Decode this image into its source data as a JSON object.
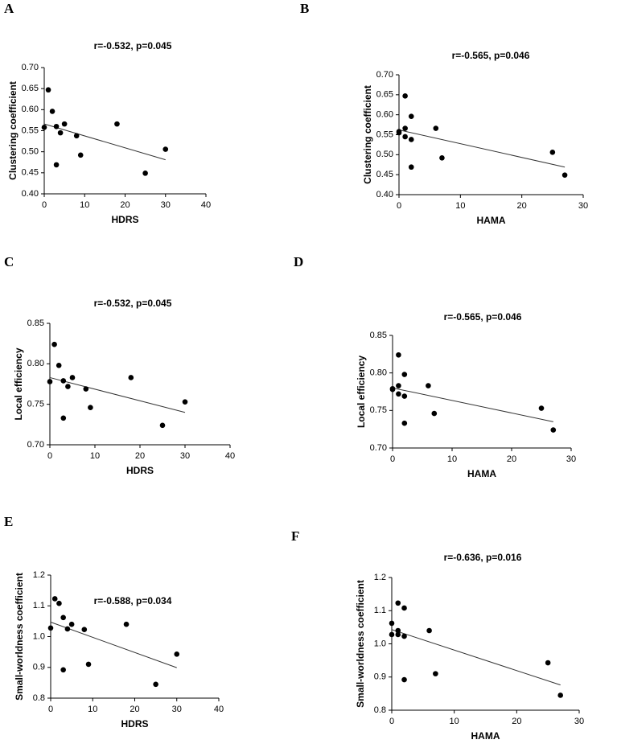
{
  "chart_data": [
    {
      "type": "scatter",
      "panel": "A",
      "title": "r=-0.532, p=0.045",
      "x_label": "HDRS",
      "y_label": "Clustering coefficient",
      "color": "#000000",
      "x": [
        0,
        1,
        2,
        3,
        4,
        5,
        8,
        9,
        3,
        18,
        25,
        30
      ],
      "y": [
        0.558,
        0.647,
        0.596,
        0.56,
        0.545,
        0.566,
        0.538,
        0.492,
        0.469,
        0.566,
        0.449,
        0.506
      ],
      "fit": {
        "x": [
          0,
          30
        ],
        "y": [
          0.566,
          0.481
        ]
      },
      "xlim": [
        0,
        40
      ],
      "xticks": [
        0,
        10,
        20,
        30,
        40
      ],
      "ylim": [
        0.4,
        0.7
      ],
      "yticks": [
        {
          "value": 0.4,
          "label": "0.40"
        },
        0.45,
        {
          "value": 0.5,
          "label": "0.50"
        },
        0.55,
        {
          "value": 0.6,
          "label": "0.60"
        },
        0.65,
        {
          "value": 0.7,
          "label": "0.70"
        }
      ]
    },
    {
      "type": "scatter",
      "panel": "B",
      "title": "r=-0.565, p=0.046",
      "x_label": "HAMA",
      "y_label": "Clustering coefficient",
      "color": "#000000",
      "x": [
        0,
        0,
        1,
        1,
        1,
        2,
        2,
        2,
        6,
        7,
        25,
        27
      ],
      "y": [
        0.558,
        0.555,
        0.647,
        0.566,
        0.545,
        0.596,
        0.538,
        0.469,
        0.566,
        0.492,
        0.506,
        0.449
      ],
      "fit": {
        "x": [
          0,
          27
        ],
        "y": [
          0.562,
          0.469
        ]
      },
      "xlim": [
        0,
        30
      ],
      "xticks": [
        0,
        10,
        20,
        30
      ],
      "ylim": [
        0.4,
        0.7
      ],
      "yticks": [
        {
          "value": 0.4,
          "label": "0.40"
        },
        0.45,
        {
          "value": 0.5,
          "label": "0.50"
        },
        0.55,
        {
          "value": 0.6,
          "label": "0.60"
        },
        0.65,
        {
          "value": 0.7,
          "label": "0.70"
        }
      ]
    },
    {
      "type": "scatter",
      "panel": "C",
      "title": "r=-0.532, p=0.045",
      "x_label": "HDRS",
      "y_label": "Local efficiency",
      "color": "#000000",
      "x": [
        0,
        1,
        2,
        3,
        3,
        4,
        5,
        8,
        9,
        18,
        25,
        30
      ],
      "y": [
        0.778,
        0.824,
        0.798,
        0.779,
        0.733,
        0.772,
        0.783,
        0.769,
        0.746,
        0.783,
        0.724,
        0.753
      ],
      "fit": {
        "x": [
          0,
          30
        ],
        "y": [
          0.783,
          0.74
        ]
      },
      "xlim": [
        0,
        40
      ],
      "xticks": [
        0,
        10,
        20,
        30,
        40
      ],
      "ylim": [
        0.7,
        0.85
      ],
      "yticks": [
        {
          "value": 0.7,
          "label": "0.70"
        },
        0.75,
        {
          "value": 0.8,
          "label": "0.80"
        },
        0.85
      ]
    },
    {
      "type": "scatter",
      "panel": "D",
      "title": "r=-0.565, p=0.046",
      "x_label": "HAMA",
      "y_label": "Local efficiency",
      "color": "#000000",
      "x": [
        0,
        0,
        1,
        1,
        1,
        2,
        2,
        2,
        6,
        7,
        25,
        27
      ],
      "y": [
        0.779,
        0.778,
        0.824,
        0.783,
        0.772,
        0.798,
        0.769,
        0.733,
        0.783,
        0.746,
        0.753,
        0.724
      ],
      "fit": {
        "x": [
          0,
          27
        ],
        "y": [
          0.78,
          0.735
        ]
      },
      "xlim": [
        0,
        30
      ],
      "xticks": [
        0,
        10,
        20,
        30
      ],
      "ylim": [
        0.7,
        0.85
      ],
      "yticks": [
        {
          "value": 0.7,
          "label": "0.70"
        },
        0.75,
        {
          "value": 0.8,
          "label": "0.80"
        },
        0.85
      ]
    },
    {
      "type": "scatter",
      "panel": "E",
      "title": "r=-0.588, p=0.034",
      "x_label": "HDRS",
      "y_label": "Small-worldness coefficient",
      "color": "#000000",
      "x": [
        0,
        1,
        2,
        3,
        3,
        4,
        5,
        8,
        9,
        18,
        25,
        30
      ],
      "y": [
        1.028,
        1.123,
        1.108,
        1.062,
        0.892,
        1.025,
        1.04,
        1.023,
        0.91,
        1.04,
        0.845,
        0.943
      ],
      "fit": {
        "x": [
          0,
          30
        ],
        "y": [
          1.047,
          0.899
        ]
      },
      "xlim": [
        0,
        40
      ],
      "xticks": [
        0,
        10,
        20,
        30,
        40
      ],
      "ylim": [
        0.8,
        1.2
      ],
      "yticks": [
        0.8,
        0.9,
        {
          "value": 1.0,
          "label": "1.0"
        },
        1.1,
        1.2
      ]
    },
    {
      "type": "scatter",
      "panel": "F",
      "title": "r=-0.636, p=0.016",
      "x_label": "HAMA",
      "y_label": "Small-worldness coefficient",
      "color": "#000000",
      "x": [
        0,
        0,
        1,
        1,
        1,
        2,
        2,
        2,
        6,
        7,
        25,
        27
      ],
      "y": [
        1.062,
        1.028,
        1.123,
        1.04,
        1.028,
        1.108,
        1.023,
        0.892,
        1.04,
        0.91,
        0.943,
        0.845
      ],
      "fit": {
        "x": [
          0,
          27
        ],
        "y": [
          1.043,
          0.876
        ]
      },
      "xlim": [
        0,
        30
      ],
      "xticks": [
        0,
        10,
        20,
        30
      ],
      "ylim": [
        0.8,
        1.2
      ],
      "yticks": [
        0.8,
        0.9,
        {
          "value": 1.0,
          "label": "1.0"
        },
        1.1,
        1.2
      ]
    }
  ]
}
